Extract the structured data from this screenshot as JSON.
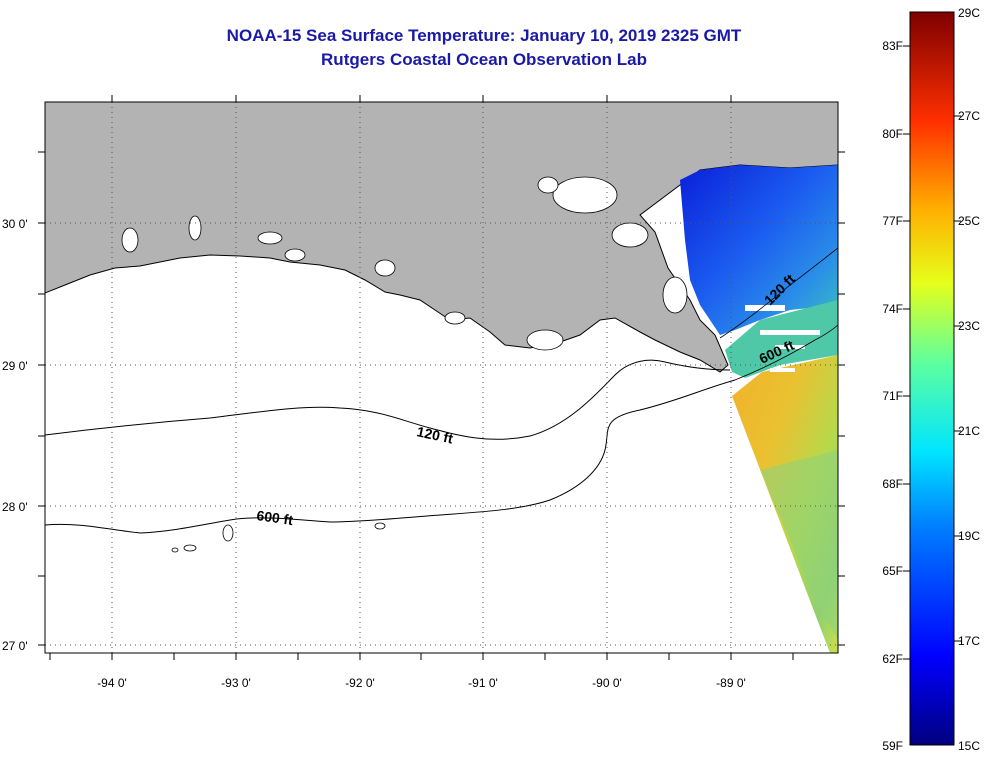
{
  "header": {
    "title": "NOAA-15 Sea Surface Temperature:  January 10, 2019 2325 GMT",
    "subtitle": "Rutgers Coastal Ocean Observation Lab"
  },
  "map": {
    "lat_labels": [
      "30 0'",
      "29 0'",
      "28 0'",
      "27 0'"
    ],
    "lon_labels": [
      "-94 0'",
      "-93 0'",
      "-92 0'",
      "-91 0'",
      "-90 0'",
      "-89 0'"
    ],
    "contours": [
      {
        "label": "120 ft"
      },
      {
        "label": "600 ft"
      },
      {
        "label": "120 ft"
      },
      {
        "label": "600 ft"
      }
    ],
    "colors": {
      "land": "#b3b3b3",
      "ocean": "#ffffff",
      "grid": "#555555"
    }
  },
  "colorbar": {
    "fahrenheit_labels": [
      "83F",
      "80F",
      "77F",
      "74F",
      "71F",
      "68F",
      "65F",
      "62F",
      "59F"
    ],
    "celsius_labels": [
      "29C",
      "27C",
      "25C",
      "23C",
      "21C",
      "19C",
      "17C",
      "15C"
    ],
    "min_c": 15,
    "max_c": 29,
    "colormap": "jet"
  }
}
